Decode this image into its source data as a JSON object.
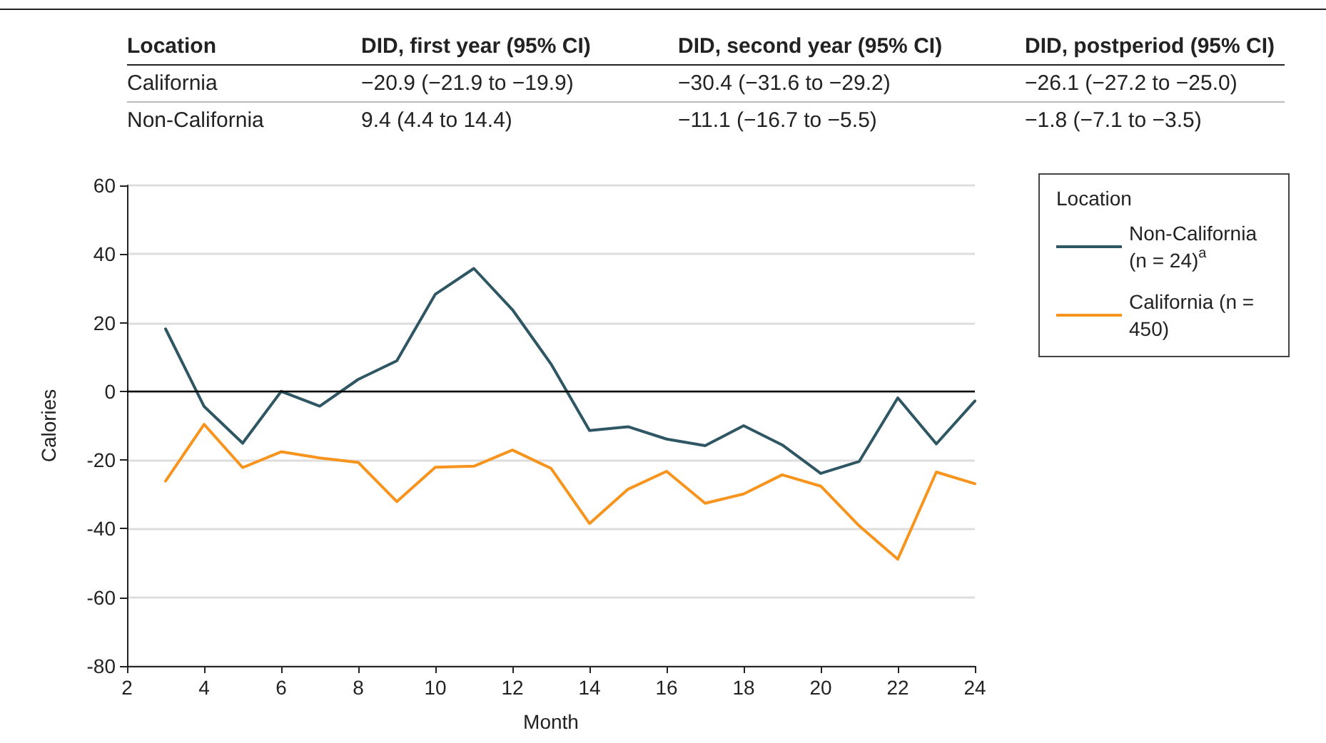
{
  "chart_data": [
    {
      "type": "other",
      "annotations": [
        "Location",
        "DID, first year (95% CI)",
        "DID, second year (95% CI)",
        "DID, postperiod (95% CI)",
        "California",
        "−20.9 (−21.9 to −19.9)",
        "−30.4 (−31.6 to −29.2)",
        "−26.1 (−27.2 to −25.0)",
        "Non-California",
        "9.4 (4.4 to 14.4)",
        "−11.1 (−16.7 to −5.5)",
        "−1.8 (−7.1 to −3.5)"
      ]
    },
    {
      "type": "line",
      "xlabel": "Month",
      "ylabel": "Calories",
      "legend_title": "Location",
      "x": [
        3,
        4,
        5,
        6,
        7,
        8,
        9,
        10,
        11,
        12,
        13,
        14,
        15,
        16,
        17,
        18,
        19,
        20,
        21,
        22,
        23,
        24
      ],
      "series": [
        {
          "name": "Non-California (n = 24)$^{a}$",
          "color": "#2f5763",
          "values": [
            18.2,
            -4.4,
            -15.1,
            0,
            -4.3,
            3.5,
            8.9,
            28.3,
            35.8,
            23.8,
            8,
            -11.4,
            -10.3,
            -13.9,
            -15.8,
            -10,
            -15.6,
            -23.9,
            -20.4,
            -1.9,
            -15.3,
            -2.8
          ]
        },
        {
          "name": "California (n = 450)",
          "color": "#f7941d",
          "values": [
            -26.1,
            -9.6,
            -22.2,
            -17.6,
            -19.4,
            -20.7,
            -32.1,
            -22.1,
            -21.8,
            -17.1,
            -22.4,
            -38.5,
            -28.5,
            -23.3,
            -32.6,
            -29.9,
            -24.3,
            -27.6,
            -39.2,
            -48.9,
            -23.5,
            -26.9
          ]
        }
      ],
      "xlim": [
        2,
        24
      ],
      "xticks": [
        2,
        4,
        6,
        8,
        10,
        12,
        14,
        16,
        18,
        20,
        22,
        24
      ],
      "ylim": [
        -80,
        60
      ],
      "yticks": [
        -80,
        -60,
        -40,
        -20,
        0,
        20,
        40,
        60
      ],
      "ref_lines": [
        {
          "axis": "y",
          "value": 0,
          "color": "#000000"
        }
      ],
      "grid": "y",
      "legend": "top right",
      "marker": "none",
      "line_style": "solid"
    }
  ]
}
